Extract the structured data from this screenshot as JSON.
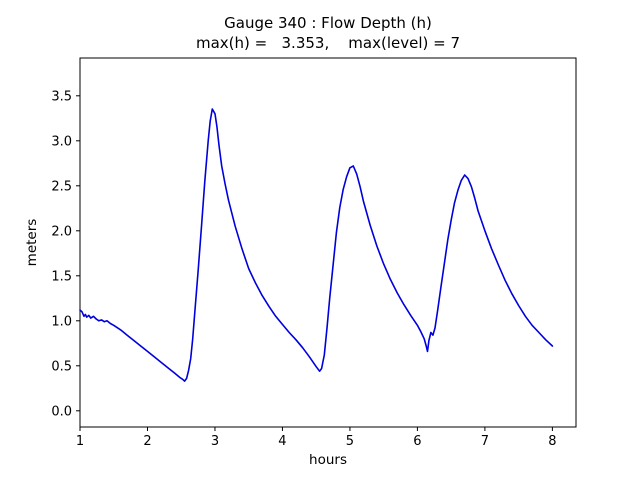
{
  "figure": {
    "background": "#ffffff",
    "frame_color": "#000000"
  },
  "chart_data": {
    "type": "line",
    "title": "Gauge 340 : Flow Depth (h)",
    "subtitle": "max(h) =   3.353,    max(level) = 7",
    "xlabel": "hours",
    "ylabel": "meters",
    "xlim": [
      1.0,
      8.35
    ],
    "ylim": [
      -0.18,
      3.92
    ],
    "x_ticks": [
      1,
      2,
      3,
      4,
      5,
      6,
      7,
      8
    ],
    "y_ticks": [
      0.0,
      0.5,
      1.0,
      1.5,
      2.0,
      2.5,
      3.0,
      3.5
    ],
    "grid": false,
    "legend": "none",
    "line_color": "#0000dd",
    "max_h": 3.353,
    "max_level": 7,
    "series": [
      {
        "name": "flow-depth",
        "x": [
          1.0,
          1.03,
          1.06,
          1.08,
          1.1,
          1.13,
          1.16,
          1.2,
          1.24,
          1.28,
          1.32,
          1.36,
          1.4,
          1.45,
          1.5,
          1.6,
          1.7,
          1.8,
          1.9,
          2.0,
          2.1,
          2.2,
          2.3,
          2.4,
          2.48,
          2.52,
          2.55,
          2.58,
          2.61,
          2.64,
          2.67,
          2.7,
          2.75,
          2.8,
          2.85,
          2.9,
          2.93,
          2.96,
          3.0,
          3.03,
          3.06,
          3.1,
          3.15,
          3.2,
          3.3,
          3.4,
          3.5,
          3.6,
          3.7,
          3.8,
          3.9,
          4.0,
          4.1,
          4.2,
          4.3,
          4.4,
          4.5,
          4.55,
          4.58,
          4.62,
          4.66,
          4.7,
          4.75,
          4.8,
          4.85,
          4.9,
          4.95,
          5.0,
          5.05,
          5.1,
          5.15,
          5.2,
          5.3,
          5.4,
          5.5,
          5.6,
          5.7,
          5.8,
          5.9,
          6.0,
          6.05,
          6.1,
          6.13,
          6.15,
          6.17,
          6.2,
          6.23,
          6.26,
          6.3,
          6.35,
          6.4,
          6.45,
          6.5,
          6.55,
          6.6,
          6.65,
          6.7,
          6.75,
          6.8,
          6.85,
          6.9,
          7.0,
          7.1,
          7.2,
          7.3,
          7.4,
          7.5,
          7.6,
          7.7,
          7.8,
          7.9,
          8.0
        ],
        "y": [
          1.12,
          1.1,
          1.05,
          1.07,
          1.04,
          1.06,
          1.03,
          1.05,
          1.02,
          1.0,
          1.01,
          0.99,
          1.0,
          0.97,
          0.95,
          0.9,
          0.84,
          0.78,
          0.72,
          0.66,
          0.6,
          0.54,
          0.48,
          0.42,
          0.37,
          0.35,
          0.33,
          0.36,
          0.45,
          0.58,
          0.8,
          1.08,
          1.55,
          2.05,
          2.55,
          3.0,
          3.22,
          3.353,
          3.3,
          3.15,
          2.95,
          2.72,
          2.52,
          2.34,
          2.05,
          1.8,
          1.58,
          1.42,
          1.28,
          1.16,
          1.05,
          0.96,
          0.87,
          0.79,
          0.7,
          0.6,
          0.49,
          0.44,
          0.47,
          0.62,
          0.92,
          1.25,
          1.62,
          1.98,
          2.26,
          2.46,
          2.6,
          2.7,
          2.72,
          2.63,
          2.49,
          2.33,
          2.06,
          1.83,
          1.63,
          1.46,
          1.31,
          1.18,
          1.06,
          0.95,
          0.88,
          0.8,
          0.72,
          0.66,
          0.78,
          0.87,
          0.84,
          0.92,
          1.12,
          1.38,
          1.64,
          1.9,
          2.12,
          2.31,
          2.45,
          2.56,
          2.62,
          2.58,
          2.49,
          2.36,
          2.22,
          2.0,
          1.8,
          1.62,
          1.45,
          1.3,
          1.17,
          1.05,
          0.95,
          0.87,
          0.79,
          0.72
        ]
      }
    ]
  }
}
